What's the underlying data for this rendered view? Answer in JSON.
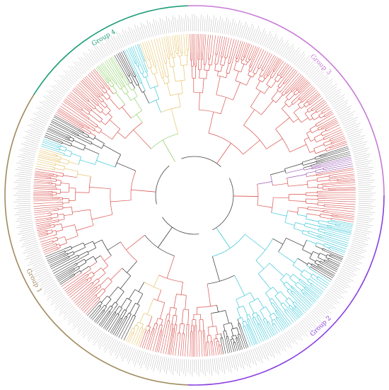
{
  "figure": {
    "groups": [
      {
        "label": "Group 1",
        "color": "#a08a5c",
        "start_deg": 182,
        "end_deg": 302
      },
      {
        "label": "Group 4",
        "color": "#1f9e7a",
        "start_deg": 302,
        "end_deg": 358
      },
      {
        "label": "Group 3",
        "color": "#c77ad6",
        "start_deg": 358,
        "end_deg": 90
      },
      {
        "label": "Group 2",
        "color": "#8a3fe0",
        "start_deg": 90,
        "end_deg": 182
      }
    ],
    "clade_colors": {
      "red": "#d9534f",
      "cyan": "#3cc8d8",
      "yellow": "#e8c46a",
      "purple": "#9b59b6",
      "black": "#333333",
      "green": "#8fd16a"
    },
    "clade_sectors": [
      {
        "color": "red",
        "start_deg": 182,
        "end_deg": 200
      },
      {
        "color": "yellow",
        "start_deg": 200,
        "end_deg": 206
      },
      {
        "color": "black",
        "start_deg": 206,
        "end_deg": 222
      },
      {
        "color": "red",
        "start_deg": 222,
        "end_deg": 236
      },
      {
        "color": "black",
        "start_deg": 236,
        "end_deg": 248
      },
      {
        "color": "red",
        "start_deg": 248,
        "end_deg": 280
      },
      {
        "color": "yellow",
        "start_deg": 280,
        "end_deg": 287
      },
      {
        "color": "cyan",
        "start_deg": 287,
        "end_deg": 291
      },
      {
        "color": "black",
        "start_deg": 291,
        "end_deg": 300
      },
      {
        "color": "red",
        "start_deg": 300,
        "end_deg": 322
      },
      {
        "color": "green",
        "start_deg": 322,
        "end_deg": 330
      },
      {
        "color": "black",
        "start_deg": 330,
        "end_deg": 334
      },
      {
        "color": "cyan",
        "start_deg": 334,
        "end_deg": 340
      },
      {
        "color": "yellow",
        "start_deg": 340,
        "end_deg": 358
      },
      {
        "color": "red",
        "start_deg": 358,
        "end_deg": 72
      },
      {
        "color": "black",
        "start_deg": 72,
        "end_deg": 76
      },
      {
        "color": "purple",
        "start_deg": 76,
        "end_deg": 80
      },
      {
        "color": "red",
        "start_deg": 80,
        "end_deg": 100
      },
      {
        "color": "cyan",
        "start_deg": 100,
        "end_deg": 112
      },
      {
        "color": "black",
        "start_deg": 112,
        "end_deg": 122
      },
      {
        "color": "cyan",
        "start_deg": 122,
        "end_deg": 160
      },
      {
        "color": "black",
        "start_deg": 160,
        "end_deg": 170
      },
      {
        "color": "red",
        "start_deg": 170,
        "end_deg": 182
      }
    ]
  }
}
